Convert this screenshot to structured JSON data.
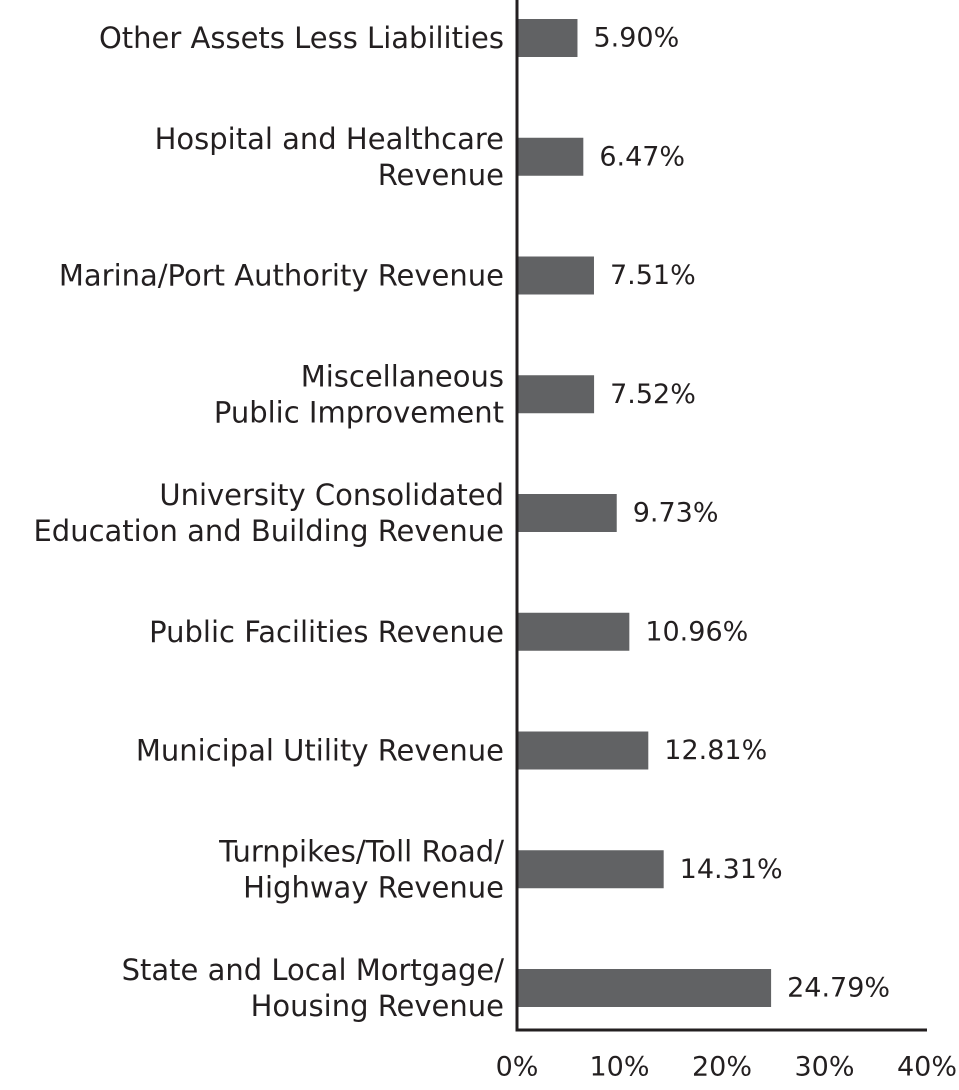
{
  "chart_data": {
    "type": "bar",
    "orientation": "horizontal",
    "categories": [
      [
        "Other Assets Less Liabilities"
      ],
      [
        "Hospital and Healthcare",
        "Revenue"
      ],
      [
        "Marina/Port Authority Revenue"
      ],
      [
        "Miscellaneous",
        "Public Improvement"
      ],
      [
        "University Consolidated",
        "Education and Building Revenue"
      ],
      [
        "Public Facilities Revenue"
      ],
      [
        "Municipal Utility Revenue"
      ],
      [
        "Turnpikes/Toll Road/",
        "Highway Revenue"
      ],
      [
        "State and Local Mortgage/",
        "Housing Revenue"
      ]
    ],
    "values": [
      5.9,
      6.47,
      7.51,
      7.52,
      9.73,
      10.96,
      12.81,
      14.31,
      24.79
    ],
    "value_labels": [
      "5.90%",
      "6.47%",
      "7.51%",
      "7.52%",
      "9.73%",
      "10.96%",
      "12.81%",
      "14.31%",
      "24.79%"
    ],
    "xlim": [
      0,
      40
    ],
    "x_ticks": [
      "0%",
      "10%",
      "20%",
      "30%",
      "40%"
    ],
    "grid": false,
    "legend": "none",
    "bar_color": "#616264",
    "axis_color": "#231f20"
  }
}
